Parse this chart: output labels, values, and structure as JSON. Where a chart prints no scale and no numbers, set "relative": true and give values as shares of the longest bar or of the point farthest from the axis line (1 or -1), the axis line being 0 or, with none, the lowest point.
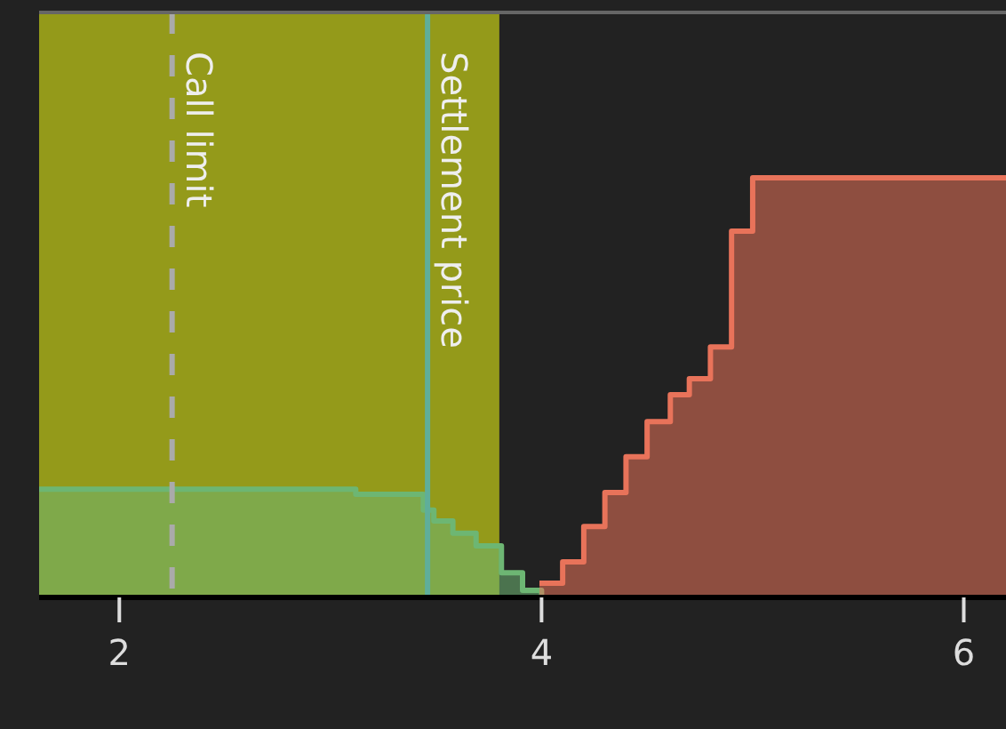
{
  "chart_data": {
    "type": "area",
    "relative": true,
    "xlim": [
      1.62,
      6.2
    ],
    "xticks": [
      2,
      4,
      6
    ],
    "series": [
      {
        "color": "#6db673",
        "x": [
          1.62,
          3.12,
          3.12,
          3.44,
          3.44,
          3.49,
          3.49,
          3.58,
          3.58,
          3.69,
          3.69,
          3.81,
          3.81,
          3.91,
          3.91,
          4.0,
          4.0
        ],
        "values": [
          0.258,
          0.258,
          0.246,
          0.246,
          0.208,
          0.208,
          0.182,
          0.182,
          0.153,
          0.153,
          0.123,
          0.123,
          0.059,
          0.059,
          0.017,
          0.017,
          0
        ]
      },
      {
        "color": "#e8735a",
        "x": [
          3.99,
          4.1,
          4.1,
          4.2,
          4.2,
          4.3,
          4.3,
          4.4,
          4.4,
          4.5,
          4.5,
          4.61,
          4.61,
          4.7,
          4.7,
          4.8,
          4.8,
          4.9,
          4.9,
          5.0,
          5.0,
          6.2
        ],
        "values": [
          0.034,
          0.034,
          0.085,
          0.085,
          0.169,
          0.169,
          0.25,
          0.25,
          0.335,
          0.335,
          0.419,
          0.419,
          0.483,
          0.483,
          0.521,
          0.521,
          0.597,
          0.597,
          0.873,
          0.873,
          1.0,
          1.0
        ]
      }
    ],
    "bands": [
      {
        "axis": "x",
        "from": 1.62,
        "to": 3.8,
        "color": "#949a1a"
      }
    ],
    "ref_lines": [
      {
        "axis": "x",
        "value": 2.25,
        "label": "Call limit",
        "color": "#aaaaaa",
        "line_style": "dashed"
      },
      {
        "axis": "x",
        "value": 3.46,
        "label": "Settlement price",
        "color": "#5fae9a",
        "line_style": "solid"
      }
    ]
  }
}
